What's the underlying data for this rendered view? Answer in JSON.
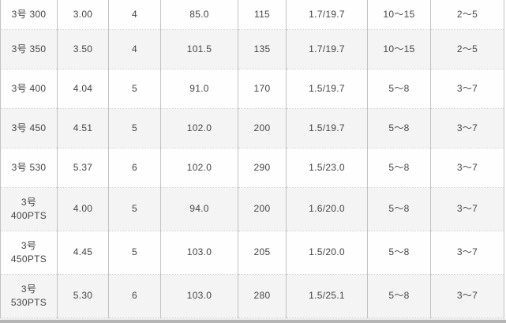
{
  "chart_data": {
    "type": "table",
    "title": "",
    "header_visible": false,
    "rows": [
      [
        "3号 300",
        "3.00",
        "4",
        "85.0",
        "115",
        "1.7/19.7",
        "10～15",
        "2～5"
      ],
      [
        "3号 350",
        "3.50",
        "4",
        "101.5",
        "135",
        "1.7/19.7",
        "10～15",
        "2～5"
      ],
      [
        "3号 400",
        "4.04",
        "5",
        "91.0",
        "170",
        "1.5/19.7",
        "5～8",
        "3～7"
      ],
      [
        "3号 450",
        "4.51",
        "5",
        "102.0",
        "200",
        "1.5/19.7",
        "5～8",
        "3～7"
      ],
      [
        "3号 530",
        "5.37",
        "6",
        "102.0",
        "290",
        "1.5/23.0",
        "5～8",
        "3～7"
      ],
      [
        "3号 400PTS",
        "4.00",
        "5",
        "94.0",
        "200",
        "1.6/20.0",
        "5～8",
        "3～7"
      ],
      [
        "3号 450PTS",
        "4.45",
        "5",
        "103.0",
        "205",
        "1.5/20.0",
        "5～8",
        "3～7"
      ],
      [
        "3号 530PTS",
        "5.30",
        "6",
        "103.0",
        "280",
        "1.5/25.1",
        "5～8",
        "3～7"
      ]
    ]
  },
  "colors": {
    "row_alternate": "#f4f4f4",
    "row_base": "#fefefe",
    "vertical_border": "#c2c2c2",
    "horizontal_dotted_border": "#cfcfcf",
    "text": "#444444",
    "bottom_bar": "#b5b5b5"
  }
}
